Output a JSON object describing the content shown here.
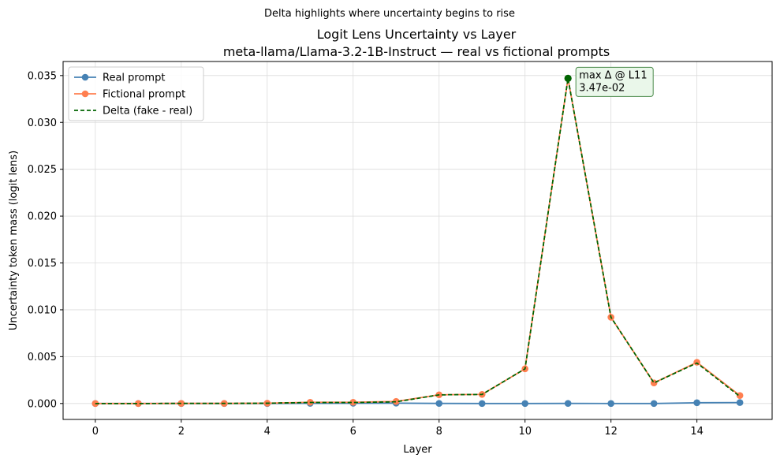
{
  "chart_data": {
    "type": "line",
    "suptitle": "Delta highlights where uncertainty begins to rise",
    "title_line1": "Logit Lens Uncertainty vs Layer",
    "title_line2": "meta-llama/Llama-3.2-1B-Instruct — real vs fictional prompts",
    "xlabel": "Layer",
    "ylabel": "Uncertainty token mass (logit lens)",
    "xlim": [
      -0.75,
      15.75
    ],
    "ylim": [
      -0.0017,
      0.0365
    ],
    "xticks": [
      0,
      2,
      4,
      6,
      8,
      10,
      12,
      14
    ],
    "yticks": [
      0.0,
      0.005,
      0.01,
      0.015,
      0.02,
      0.025,
      0.03,
      0.035
    ],
    "ytick_labels": [
      "0.000",
      "0.005",
      "0.010",
      "0.015",
      "0.020",
      "0.025",
      "0.030",
      "0.035"
    ],
    "grid": true,
    "legend_position": "upper left",
    "x": [
      0,
      1,
      2,
      3,
      4,
      5,
      6,
      7,
      8,
      9,
      10,
      11,
      12,
      13,
      14,
      15
    ],
    "series": [
      {
        "name": "Real prompt",
        "color": "#4682b4",
        "style": "solid",
        "marker": "circle",
        "values": [
          0.0,
          0.0,
          0.0,
          0.0,
          0.0,
          2e-05,
          3e-05,
          4e-05,
          1e-05,
          0.0,
          0.0,
          1e-05,
          0.0,
          0.0,
          8e-05,
          0.0001
        ]
      },
      {
        "name": "Fictional prompt",
        "color": "#ff7f50",
        "style": "solid",
        "marker": "circle",
        "values": [
          0.0,
          0.0,
          1e-05,
          1e-05,
          3e-05,
          0.00013,
          0.00013,
          0.00022,
          0.00093,
          0.00097,
          0.0037,
          0.0347,
          0.0092,
          0.0022,
          0.0044,
          0.00085
        ]
      },
      {
        "name": "Delta (fake - real)",
        "color": "#006400",
        "style": "dashed",
        "marker": "none",
        "values": [
          0.0,
          0.0,
          1e-05,
          1e-05,
          3e-05,
          0.00011,
          0.0001,
          0.00018,
          0.00092,
          0.00097,
          0.0037,
          0.0347,
          0.0092,
          0.0022,
          0.00432,
          0.00075
        ]
      }
    ],
    "annotation": {
      "line1": "max Δ @ L11",
      "line2": "3.47e-02",
      "x": 11,
      "y": 0.0347,
      "marker_color": "#006400",
      "box_fill": "#eaf7ea",
      "box_edge": "#4a8a4a"
    }
  }
}
